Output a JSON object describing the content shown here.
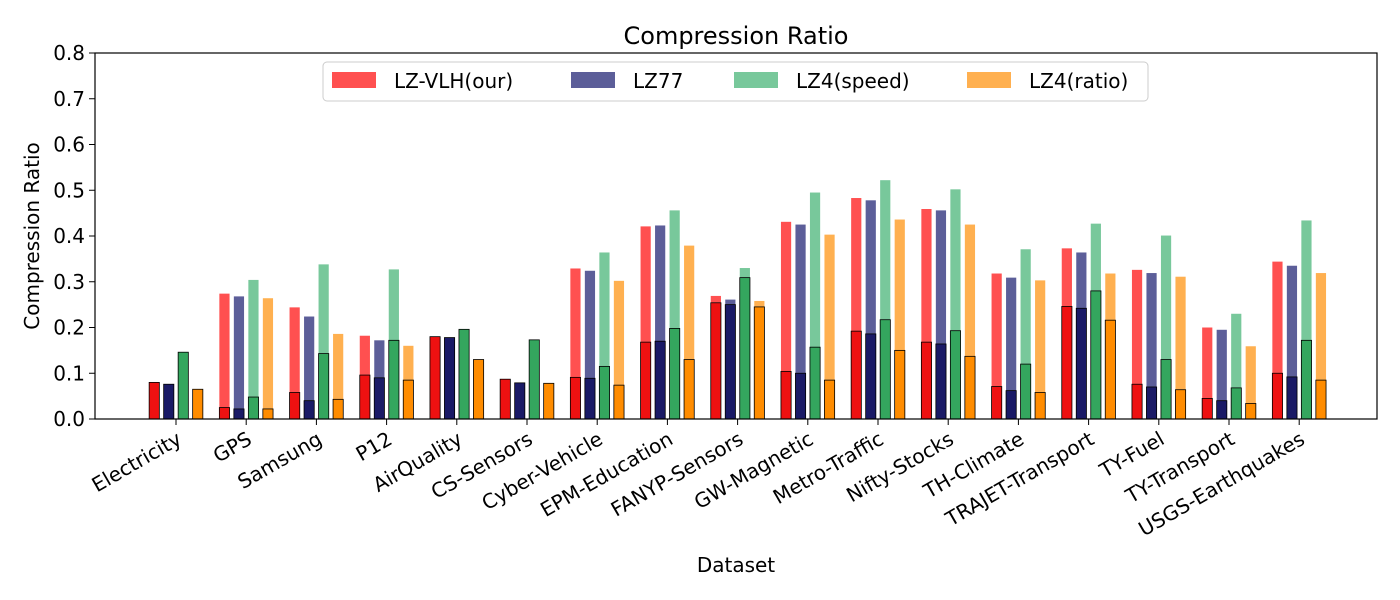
{
  "chart_data": {
    "type": "bar",
    "title": "Compression Ratio",
    "xlabel": "Dataset",
    "ylabel": "Compression Ratio",
    "ylim": [
      0,
      0.8
    ],
    "yticks": [
      "0.0",
      "0.1",
      "0.2",
      "0.3",
      "0.4",
      "0.5",
      "0.6",
      "0.7",
      "0.8"
    ],
    "grid": false,
    "legend_position": "top-center",
    "categories": [
      "Electricity",
      "GPS",
      "Samsung",
      "P12",
      "AirQuality",
      "CS-Sensors",
      "Cyber-Vehicle",
      "EPM-Education",
      "FANYP-Sensors",
      "GW-Magnetic",
      "Metro-Traffic",
      "Nifty-Stocks",
      "TH-Climate",
      "TRAJET-Transport",
      "TY-Fuel",
      "TY-Transport",
      "USGS-Earthquakes"
    ],
    "series": [
      {
        "name": "LZ-VLH(our)",
        "color": "#ff5050",
        "dark_color": "#ee1111",
        "values": [
          0.08,
          0.274,
          0.244,
          0.182,
          0.18,
          0.087,
          0.329,
          0.421,
          0.269,
          0.431,
          0.483,
          0.459,
          0.318,
          0.373,
          0.326,
          0.2,
          0.344
        ],
        "inner_values": [
          0.08,
          0.025,
          0.058,
          0.096,
          0.18,
          0.087,
          0.091,
          0.168,
          0.254,
          0.104,
          0.192,
          0.168,
          0.071,
          0.246,
          0.076,
          0.045,
          0.1
        ]
      },
      {
        "name": "LZ77",
        "color": "#5c5e99",
        "dark_color": "#1a1a66",
        "values": [
          0.076,
          0.268,
          0.224,
          0.172,
          0.178,
          0.079,
          0.324,
          0.423,
          0.261,
          0.425,
          0.478,
          0.456,
          0.309,
          0.364,
          0.319,
          0.195,
          0.335
        ],
        "inner_values": [
          0.076,
          0.022,
          0.04,
          0.09,
          0.178,
          0.079,
          0.089,
          0.17,
          0.25,
          0.1,
          0.186,
          0.164,
          0.062,
          0.242,
          0.07,
          0.04,
          0.092
        ]
      },
      {
        "name": "LZ4(speed)",
        "color": "#78c89b",
        "dark_color": "#34a65e",
        "values": [
          0.146,
          0.304,
          0.338,
          0.327,
          0.196,
          0.173,
          0.364,
          0.456,
          0.33,
          0.495,
          0.522,
          0.502,
          0.371,
          0.427,
          0.401,
          0.23,
          0.434
        ],
        "inner_values": [
          0.146,
          0.048,
          0.143,
          0.172,
          0.196,
          0.173,
          0.115,
          0.198,
          0.309,
          0.157,
          0.217,
          0.193,
          0.12,
          0.28,
          0.13,
          0.068,
          0.172
        ]
      },
      {
        "name": "LZ4(ratio)",
        "color": "#ffb050",
        "dark_color": "#ff8c00",
        "values": [
          0.065,
          0.264,
          0.186,
          0.16,
          0.13,
          0.078,
          0.302,
          0.379,
          0.258,
          0.403,
          0.436,
          0.425,
          0.303,
          0.318,
          0.311,
          0.159,
          0.319
        ],
        "inner_values": [
          0.065,
          0.022,
          0.043,
          0.085,
          0.13,
          0.078,
          0.074,
          0.13,
          0.245,
          0.085,
          0.15,
          0.137,
          0.058,
          0.216,
          0.064,
          0.034,
          0.085
        ]
      }
    ]
  }
}
